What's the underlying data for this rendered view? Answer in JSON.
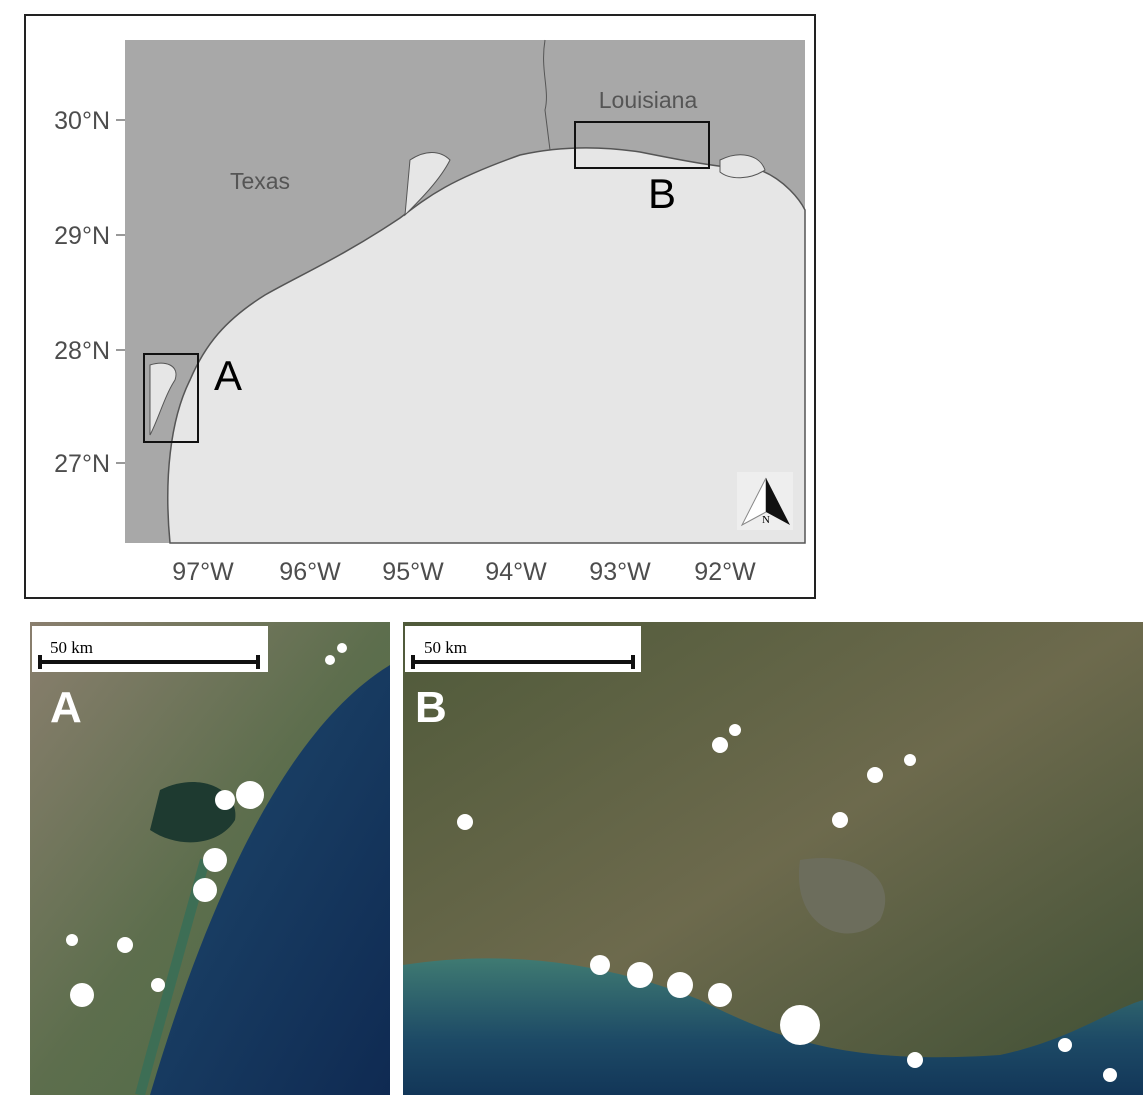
{
  "overview_map": {
    "y_axis_labels": [
      "30°N",
      "29°N",
      "28°N",
      "27°N"
    ],
    "x_axis_labels": [
      "97°W",
      "96°W",
      "95°W",
      "94°W",
      "93°W",
      "92°W"
    ],
    "region_labels": [
      "Texas",
      "Louisiana"
    ],
    "box_labels": [
      "A",
      "B"
    ],
    "north_arrow": "N"
  },
  "insets": [
    {
      "label": "A",
      "scale_bar": "50 km"
    },
    {
      "label": "B",
      "scale_bar": "50 km"
    }
  ]
}
